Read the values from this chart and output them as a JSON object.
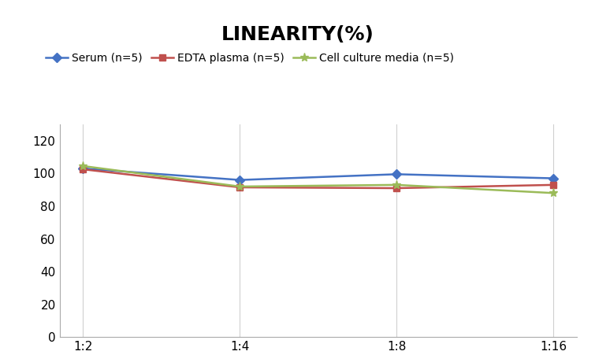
{
  "title": "LINEARITY(%)",
  "title_fontsize": 18,
  "title_fontweight": "bold",
  "x_labels": [
    "1:2",
    "1:4",
    "1:8",
    "1:16"
  ],
  "x_positions": [
    0,
    1,
    2,
    3
  ],
  "series": [
    {
      "label": "Serum (n=5)",
      "values": [
        103,
        96,
        99.5,
        97
      ],
      "color": "#4472C4",
      "marker": "D",
      "markersize": 6,
      "linewidth": 1.8
    },
    {
      "label": "EDTA plasma (n=5)",
      "values": [
        102.5,
        91.5,
        91,
        93
      ],
      "color": "#C0504D",
      "marker": "s",
      "markersize": 6,
      "linewidth": 1.8
    },
    {
      "label": "Cell culture media (n=5)",
      "values": [
        104.5,
        92,
        93,
        88
      ],
      "color": "#9BBB59",
      "marker": "*",
      "markersize": 8,
      "linewidth": 1.8
    }
  ],
  "ylim": [
    0,
    130
  ],
  "yticks": [
    0,
    20,
    40,
    60,
    80,
    100,
    120
  ],
  "background_color": "#ffffff",
  "grid_color": "#d0d0d0",
  "legend_fontsize": 10,
  "axis_tick_fontsize": 11
}
